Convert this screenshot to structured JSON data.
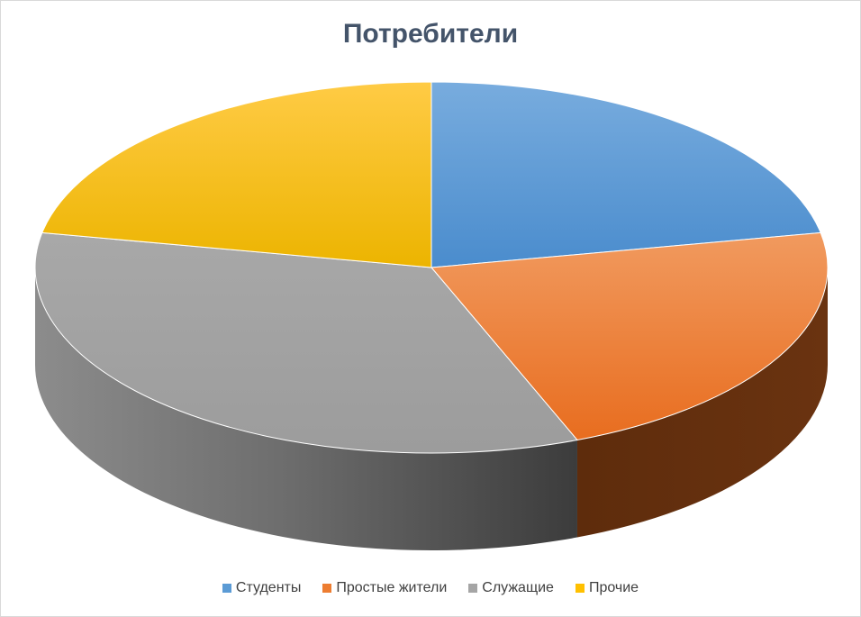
{
  "chart_data": {
    "type": "pie",
    "title": "Потребители",
    "legend_position": "bottom",
    "categories": [
      "Студенты",
      "Простые жители",
      "Служащие",
      "Прочие"
    ],
    "values": [
      22,
      22,
      34,
      22
    ],
    "colors": [
      "#5b9bd5",
      "#ed7d31",
      "#a5a5a5",
      "#ffc000"
    ],
    "three_d": true
  }
}
